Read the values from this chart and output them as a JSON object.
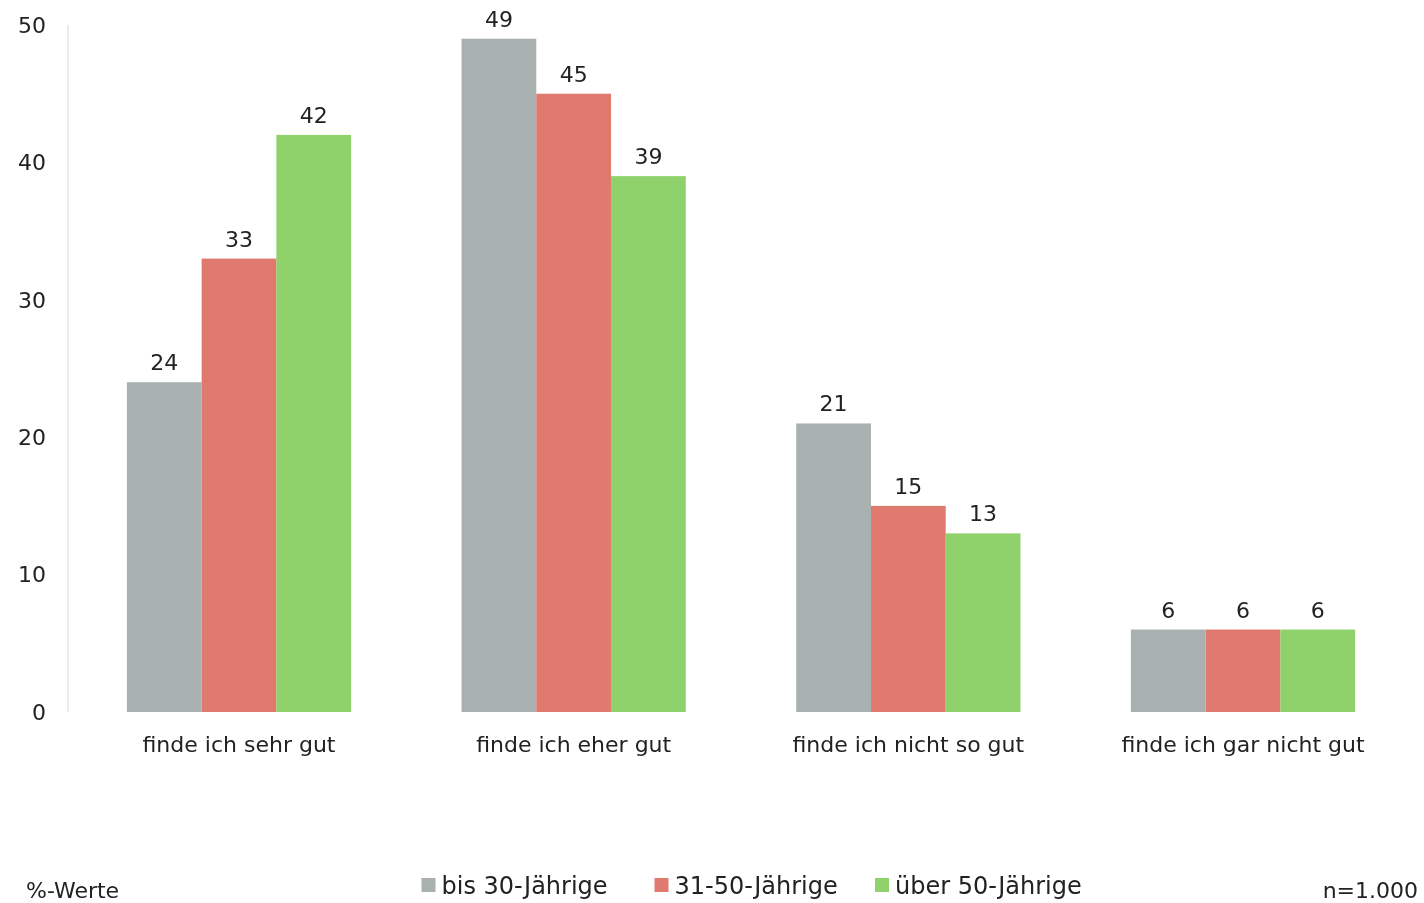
{
  "chart_data": {
    "type": "bar",
    "categories": [
      "finde ich sehr gut",
      "finde ich eher gut",
      "finde ich nicht so gut",
      "finde ich gar nicht gut"
    ],
    "series": [
      {
        "name": "bis 30-Jährige",
        "color": "#a9b0b0",
        "values": [
          24,
          49,
          21,
          6
        ]
      },
      {
        "name": "31-50-Jährige",
        "color": "#e07a6e",
        "values": [
          33,
          45,
          15,
          6
        ]
      },
      {
        "name": "über 50-Jährige",
        "color": "#8fd16a",
        "values": [
          42,
          39,
          13,
          6
        ]
      }
    ],
    "ylim": [
      0,
      50
    ],
    "yticks": [
      0,
      10,
      20,
      30,
      40,
      50
    ],
    "data_labels": true,
    "grid": false,
    "legend": "bottom",
    "annotations": [
      "%-Werte",
      "n=1.000"
    ]
  }
}
